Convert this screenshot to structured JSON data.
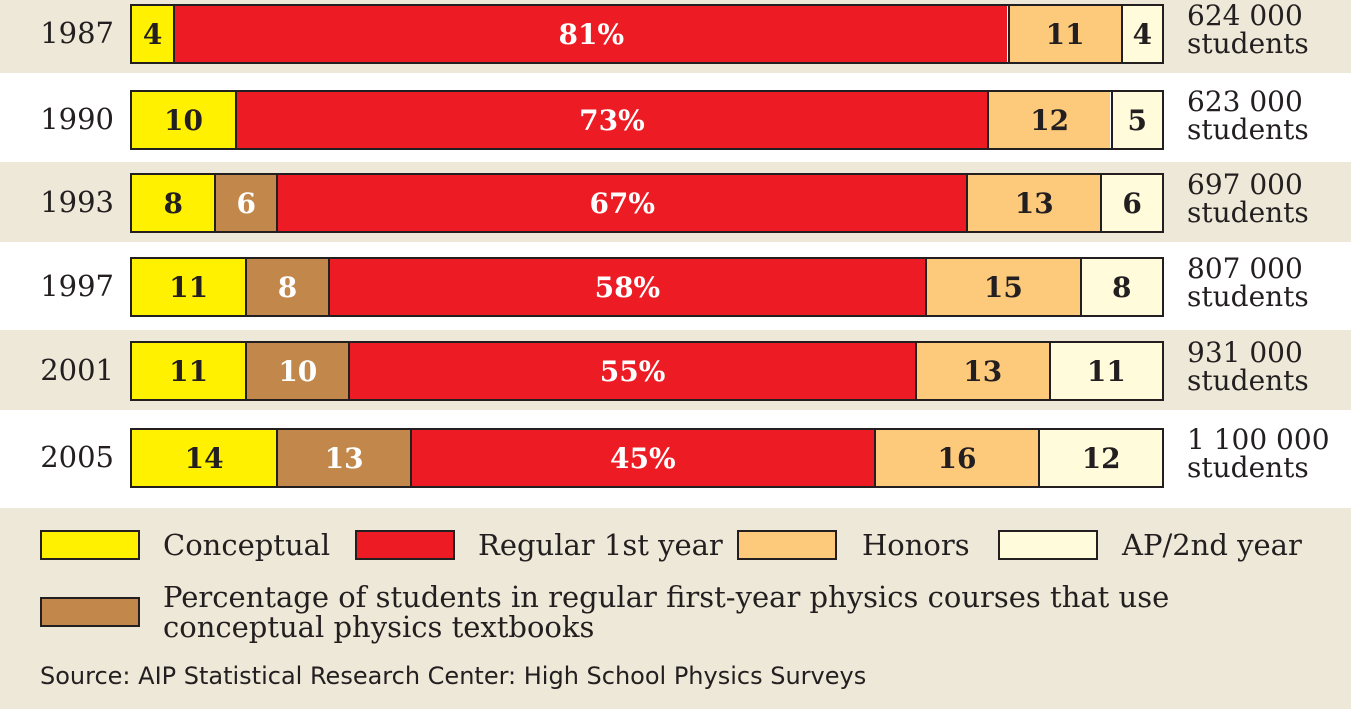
{
  "chart_data": {
    "type": "bar",
    "orientation": "horizontal-stacked",
    "categories": [
      "1987",
      "1990",
      "1993",
      "1997",
      "2001",
      "2005"
    ],
    "series": [
      {
        "name": "Conceptual",
        "values": [
          4,
          10,
          8,
          11,
          11,
          14
        ],
        "color": "#fff100"
      },
      {
        "name": "Percentage of students in regular first-year physics courses that use conceptual physics textbooks",
        "values": [
          null,
          null,
          6,
          8,
          10,
          13
        ],
        "color": "#c2884b"
      },
      {
        "name": "Regular 1st year",
        "values": [
          81,
          73,
          67,
          58,
          55,
          45
        ],
        "color": "#ed1c24"
      },
      {
        "name": "Honors",
        "values": [
          11,
          12,
          13,
          15,
          13,
          16
        ],
        "color": "#fdc97b"
      },
      {
        "name": "AP/2nd year",
        "values": [
          4,
          5,
          6,
          8,
          11,
          12
        ],
        "color": "#fffbdb"
      }
    ],
    "segment_labels": [
      [
        "4",
        "",
        "81%",
        "11",
        "4"
      ],
      [
        "10",
        "",
        "73%",
        "12",
        "5"
      ],
      [
        "8",
        "6",
        "67%",
        "13",
        "6"
      ],
      [
        "11",
        "8",
        "58%",
        "15",
        "8"
      ],
      [
        "11",
        "10",
        "55%",
        "13",
        "11"
      ],
      [
        "14",
        "13",
        "45%",
        "16",
        "12"
      ]
    ],
    "totals": [
      {
        "number": "624 000",
        "unit": "students"
      },
      {
        "number": "623 000",
        "unit": "students"
      },
      {
        "number": "697 000",
        "unit": "students"
      },
      {
        "number": "807 000",
        "unit": "students"
      },
      {
        "number": "931 000",
        "unit": "students"
      },
      {
        "number": "1 100 000",
        "unit": "students"
      }
    ],
    "xlim": [
      0,
      100
    ],
    "legend": {
      "conceptual": "Conceptual",
      "regular": "Regular 1st year",
      "honors": "Honors",
      "ap": "AP/2nd year",
      "note": "Percentage of students in regular first-year physics courses that use conceptual physics textbooks"
    },
    "source": "Source: AIP Statistical Research Center: High School Physics Surveys"
  }
}
